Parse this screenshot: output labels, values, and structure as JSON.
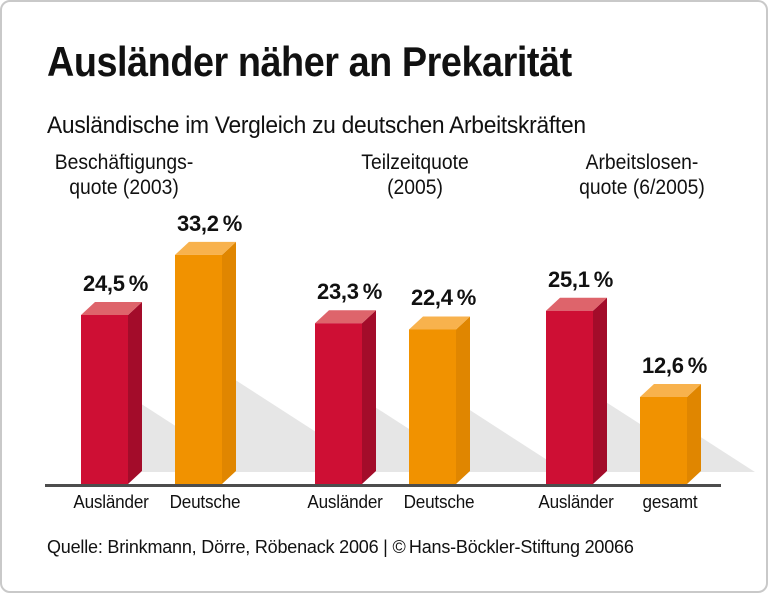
{
  "header": {
    "title": "Ausländer näher an Prekarität",
    "subtitle": "Ausländische im Vergleich zu deutschen Arbeitskräften"
  },
  "footer": {
    "source": "Quelle: Brinkmann, Dörre, Röbenack 2006 | © Hans-Böckler-Stiftung 20066"
  },
  "colors": {
    "red_front": "#ce0f34",
    "red_top": "#de646b",
    "red_side": "#a30c2a",
    "orange_front": "#f19200",
    "orange_top": "#f8b24d",
    "orange_side": "#e08600",
    "shadow": "#e6e6e6",
    "axis_line": "#4d4d4d",
    "text": "#111111",
    "card_border": "#c9c9c9"
  },
  "chart_data": {
    "type": "bar",
    "unit": "%",
    "title": "Ausländer näher an Prekarität",
    "subtitle": "Ausländische im Vergleich zu deutschen Arbeitskräften",
    "grid": false,
    "legend_position": "none",
    "value_axis_visible": false,
    "style": "3d-extruded-columns-with-floor-shadow",
    "groups": [
      {
        "header_lines": [
          "Beschäftigungs-",
          "quote (2003)"
        ],
        "bars": [
          {
            "category": "Ausländer",
            "value": 24.5,
            "label": "24,5 %",
            "color_key": "red"
          },
          {
            "category": "Deutsche",
            "value": 33.2,
            "label": "33,2 %",
            "color_key": "orange"
          }
        ]
      },
      {
        "header_lines": [
          "Teilzeitquote",
          "(2005)"
        ],
        "bars": [
          {
            "category": "Ausländer",
            "value": 23.3,
            "label": "23,3 %",
            "color_key": "red"
          },
          {
            "category": "Deutsche",
            "value": 22.4,
            "label": "22,4 %",
            "color_key": "orange"
          }
        ]
      },
      {
        "header_lines": [
          "Arbeitslosen-",
          "quote (6/2005)"
        ],
        "bars": [
          {
            "category": "Ausländer",
            "value": 25.1,
            "label": "25,1 %",
            "color_key": "red"
          },
          {
            "category": "gesamt",
            "value": 12.6,
            "label": "12,6 %",
            "color_key": "orange"
          }
        ]
      }
    ]
  }
}
